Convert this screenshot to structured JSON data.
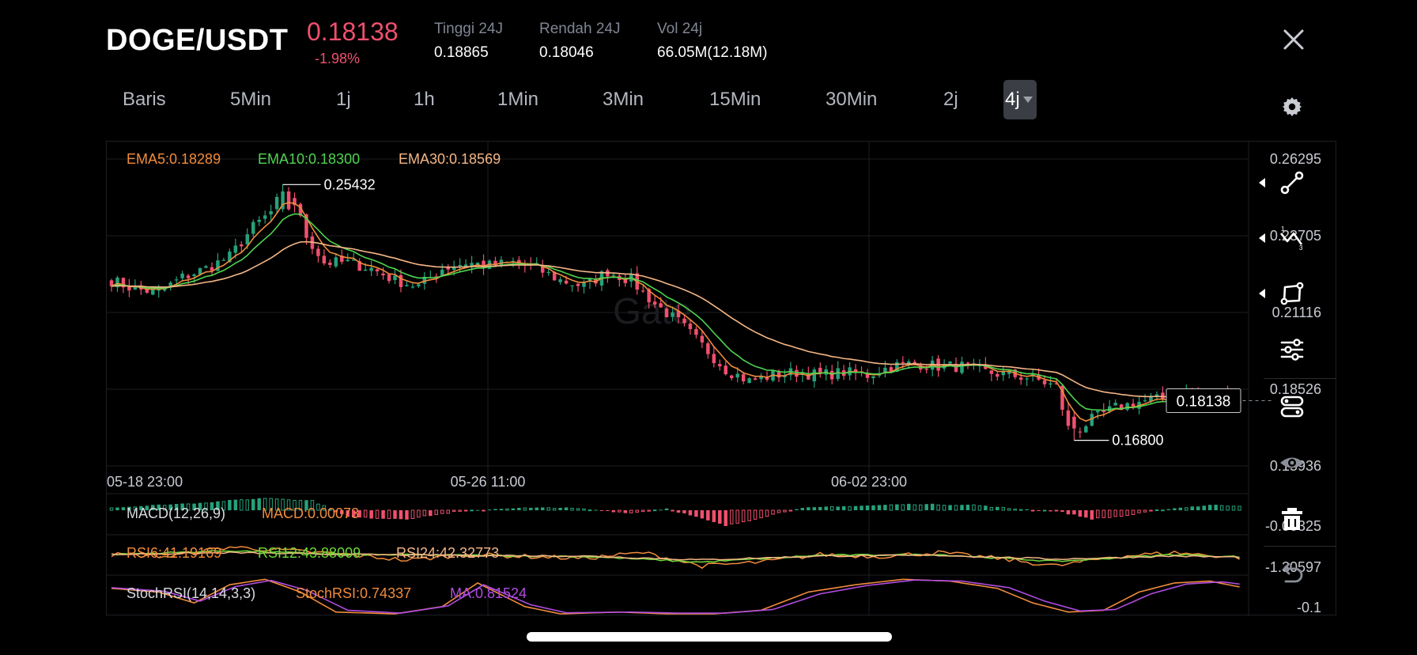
{
  "header": {
    "symbol": "DOGE/USDT",
    "price": "0.18138",
    "change": "-1.98%",
    "stats": [
      {
        "label": "Tinggi 24J",
        "value": "0.18865"
      },
      {
        "label": "Rendah 24J",
        "value": "0.18046"
      },
      {
        "label": "Vol 24j",
        "value": "66.05M(12.18M)"
      }
    ]
  },
  "timeframes": [
    "Baris",
    "5Min",
    "1j",
    "1h",
    "1Min",
    "3Min",
    "15Min",
    "30Min",
    "2j"
  ],
  "active_timeframe": "4j",
  "icons": {
    "close": "close-icon",
    "settings": "gear-icon",
    "tools": [
      "trend-line-icon",
      "fibonacci-icon",
      "shape-icon",
      "indicator-settings-icon",
      "layer-icon",
      "visibility-icon",
      "delete-icon",
      "undo-icon"
    ]
  },
  "colors": {
    "up": "#26a17b",
    "down": "#f0506e",
    "ema5": "#f08c3c",
    "ema10": "#4fd44f",
    "ema30": "#f5b686",
    "macd_label": "#d9dbe0",
    "macd_value": "#f08c3c",
    "rsi6": "#f08c3c",
    "rsi12": "#6fd83c",
    "rsi24": "#f5b686",
    "stoch_k": "#f08c3c",
    "stoch_d": "#b04ce0"
  },
  "chart_data": {
    "type": "candlestick",
    "symbol": "DOGE/USDT",
    "interval": "4j",
    "x_ticks": [
      "05-18 23:00",
      "05-26 11:00",
      "06-02 23:00"
    ],
    "y_ticks": [
      "0.26295",
      "0.23705",
      "0.21116",
      "0.18526",
      "0.15936"
    ],
    "ylim": [
      0.15936,
      0.26295
    ],
    "current_price": "0.18138",
    "max_label": "0.25432",
    "min_label": "0.16800",
    "ema_legend": [
      {
        "name": "EMA5",
        "value": "0.18289"
      },
      {
        "name": "EMA10",
        "value": "0.18300"
      },
      {
        "name": "EMA30",
        "value": "0.18569"
      }
    ],
    "close_anchors": [
      [
        0,
        0.222
      ],
      [
        4,
        0.219
      ],
      [
        8,
        0.218
      ],
      [
        12,
        0.223
      ],
      [
        16,
        0.226
      ],
      [
        20,
        0.23
      ],
      [
        24,
        0.24
      ],
      [
        27,
        0.245
      ],
      [
        29,
        0.252
      ],
      [
        31,
        0.248
      ],
      [
        33,
        0.237
      ],
      [
        36,
        0.228
      ],
      [
        40,
        0.228
      ],
      [
        44,
        0.226
      ],
      [
        48,
        0.222
      ],
      [
        52,
        0.22
      ],
      [
        56,
        0.226
      ],
      [
        60,
        0.228
      ],
      [
        64,
        0.227
      ],
      [
        68,
        0.228
      ],
      [
        72,
        0.226
      ],
      [
        76,
        0.222
      ],
      [
        80,
        0.22
      ],
      [
        84,
        0.225
      ],
      [
        88,
        0.222
      ],
      [
        92,
        0.214
      ],
      [
        96,
        0.208
      ],
      [
        100,
        0.2
      ],
      [
        104,
        0.192
      ],
      [
        108,
        0.188
      ],
      [
        112,
        0.19
      ],
      [
        116,
        0.191
      ],
      [
        120,
        0.19
      ],
      [
        124,
        0.191
      ],
      [
        128,
        0.19
      ],
      [
        132,
        0.193
      ],
      [
        136,
        0.194
      ],
      [
        140,
        0.193
      ],
      [
        144,
        0.193
      ],
      [
        148,
        0.191
      ],
      [
        152,
        0.19
      ],
      [
        156,
        0.189
      ],
      [
        160,
        0.186
      ],
      [
        162,
        0.172
      ],
      [
        164,
        0.172
      ],
      [
        166,
        0.175
      ],
      [
        170,
        0.179
      ],
      [
        174,
        0.181
      ],
      [
        178,
        0.182
      ],
      [
        182,
        0.184
      ],
      [
        186,
        0.183
      ],
      [
        190,
        0.182
      ],
      [
        191,
        0.181
      ]
    ],
    "macd": {
      "name": "MACD(12,26,9)",
      "value_label": "MACD:0.00073",
      "axis_value": "-0.00325",
      "hist_anchors": [
        [
          0,
          0.15
        ],
        [
          16,
          0.45
        ],
        [
          26,
          0.7
        ],
        [
          34,
          0.55
        ],
        [
          40,
          -0.4
        ],
        [
          50,
          -0.5
        ],
        [
          58,
          -0.1
        ],
        [
          66,
          0.1
        ],
        [
          76,
          0.15
        ],
        [
          82,
          0.0
        ],
        [
          88,
          -0.15
        ],
        [
          94,
          0.1
        ],
        [
          98,
          -0.3
        ],
        [
          104,
          -0.9
        ],
        [
          110,
          -0.4
        ],
        [
          116,
          0.1
        ],
        [
          126,
          0.25
        ],
        [
          136,
          0.35
        ],
        [
          146,
          0.3
        ],
        [
          152,
          0.1
        ],
        [
          160,
          -0.05
        ],
        [
          166,
          -0.5
        ],
        [
          172,
          -0.3
        ],
        [
          178,
          0.05
        ],
        [
          186,
          0.3
        ],
        [
          191,
          0.25
        ]
      ]
    },
    "rsi": {
      "labels": [
        "RSI6:41.19169",
        "RSI12:43.88009",
        "RSI24:42.32773"
      ],
      "axis_value": "-1.30597",
      "series": [
        {
          "name": "RSI6",
          "anchors": [
            [
              0,
              0.5
            ],
            [
              10,
              0.45
            ],
            [
              20,
              0.7
            ],
            [
              30,
              0.6
            ],
            [
              40,
              0.5
            ],
            [
              50,
              0.35
            ],
            [
              60,
              0.5
            ],
            [
              70,
              0.45
            ],
            [
              80,
              0.4
            ],
            [
              90,
              0.55
            ],
            [
              100,
              0.2
            ],
            [
              110,
              0.3
            ],
            [
              120,
              0.5
            ],
            [
              130,
              0.45
            ],
            [
              140,
              0.55
            ],
            [
              150,
              0.4
            ],
            [
              160,
              0.2
            ],
            [
              170,
              0.45
            ],
            [
              180,
              0.55
            ],
            [
              191,
              0.42
            ]
          ]
        },
        {
          "name": "RSI12",
          "anchors": [
            [
              0,
              0.5
            ],
            [
              20,
              0.6
            ],
            [
              40,
              0.5
            ],
            [
              60,
              0.48
            ],
            [
              80,
              0.45
            ],
            [
              100,
              0.3
            ],
            [
              120,
              0.48
            ],
            [
              140,
              0.5
            ],
            [
              160,
              0.32
            ],
            [
              180,
              0.5
            ],
            [
              191,
              0.44
            ]
          ]
        },
        {
          "name": "RSI24",
          "anchors": [
            [
              0,
              0.5
            ],
            [
              20,
              0.55
            ],
            [
              40,
              0.5
            ],
            [
              60,
              0.48
            ],
            [
              80,
              0.46
            ],
            [
              100,
              0.36
            ],
            [
              120,
              0.46
            ],
            [
              140,
              0.48
            ],
            [
              160,
              0.38
            ],
            [
              180,
              0.46
            ],
            [
              191,
              0.43
            ]
          ]
        }
      ]
    },
    "stoch_rsi": {
      "labels": [
        "StochRSI(14,14,3,3)",
        "StochRSI:0.74337",
        "MA:0.81524"
      ],
      "axis_value": "-0.1",
      "series": [
        {
          "name": "StochRSI",
          "anchors": [
            [
              0,
              0.7
            ],
            [
              8,
              0.6
            ],
            [
              14,
              0.3
            ],
            [
              20,
              0.8
            ],
            [
              26,
              0.95
            ],
            [
              32,
              0.6
            ],
            [
              38,
              0.05
            ],
            [
              48,
              0.0
            ],
            [
              56,
              0.2
            ],
            [
              62,
              0.85
            ],
            [
              70,
              0.2
            ],
            [
              76,
              0.0
            ],
            [
              86,
              0.05
            ],
            [
              94,
              0.0
            ],
            [
              102,
              0.0
            ],
            [
              110,
              0.1
            ],
            [
              118,
              0.6
            ],
            [
              126,
              0.8
            ],
            [
              134,
              0.95
            ],
            [
              142,
              0.9
            ],
            [
              150,
              0.7
            ],
            [
              156,
              0.3
            ],
            [
              162,
              0.05
            ],
            [
              168,
              0.1
            ],
            [
              174,
              0.6
            ],
            [
              180,
              0.85
            ],
            [
              186,
              0.9
            ],
            [
              191,
              0.74
            ]
          ]
        },
        {
          "name": "MA",
          "anchors": [
            [
              0,
              0.72
            ],
            [
              9,
              0.62
            ],
            [
              15,
              0.35
            ],
            [
              21,
              0.75
            ],
            [
              27,
              0.92
            ],
            [
              33,
              0.65
            ],
            [
              40,
              0.1
            ],
            [
              49,
              0.02
            ],
            [
              57,
              0.22
            ],
            [
              63,
              0.8
            ],
            [
              71,
              0.25
            ],
            [
              77,
              0.03
            ],
            [
              88,
              0.05
            ],
            [
              96,
              0.02
            ],
            [
              104,
              0.02
            ],
            [
              112,
              0.12
            ],
            [
              120,
              0.55
            ],
            [
              128,
              0.78
            ],
            [
              136,
              0.93
            ],
            [
              144,
              0.9
            ],
            [
              152,
              0.72
            ],
            [
              158,
              0.35
            ],
            [
              164,
              0.08
            ],
            [
              170,
              0.12
            ],
            [
              176,
              0.55
            ],
            [
              182,
              0.82
            ],
            [
              188,
              0.88
            ],
            [
              191,
              0.82
            ]
          ]
        }
      ]
    }
  }
}
